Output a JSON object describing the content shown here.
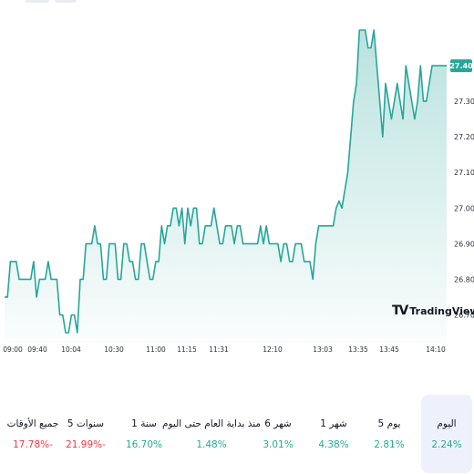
{
  "colors": {
    "positive": "#22ab94",
    "negative": "#f23645",
    "line": "#26a69a",
    "active_bg": "#eef1fb"
  },
  "logo": {
    "mark": "TV",
    "text": "TradingView"
  },
  "chart_data": {
    "type": "line",
    "title": "",
    "xlabel": "",
    "ylabel": "",
    "last_value_label": "27.40",
    "ylim": [
      26.65,
      27.55
    ],
    "y_ticks": [
      26.7,
      26.8,
      26.9,
      27.0,
      27.1,
      27.2,
      27.3
    ],
    "y_tick_labels": [
      "26.70",
      "26.80",
      "26.90",
      "27.00",
      "27.10",
      "27.20",
      "27.30"
    ],
    "x_ticks": [
      "09:00",
      "09:40",
      "10:04",
      "10:30",
      "11:00",
      "11:15",
      "11:31",
      "12:10",
      "13:03",
      "13:35",
      "13:45",
      "14:10"
    ],
    "series": [
      {
        "values": [
          26.75,
          26.75,
          26.85,
          26.85,
          26.85,
          26.8,
          26.8,
          26.8,
          26.8,
          26.8,
          26.85,
          26.75,
          26.8,
          26.8,
          26.8,
          26.85,
          26.8,
          26.8,
          26.8,
          26.7,
          26.7,
          26.65,
          26.65,
          26.7,
          26.7,
          26.65,
          26.8,
          26.8,
          26.9,
          26.9,
          26.9,
          26.95,
          26.9,
          26.9,
          26.8,
          26.8,
          26.9,
          26.9,
          26.9,
          26.8,
          26.8,
          26.9,
          26.9,
          26.85,
          26.85,
          26.8,
          26.8,
          26.9,
          26.9,
          26.85,
          26.8,
          26.8,
          26.85,
          26.85,
          26.95,
          26.9,
          26.95,
          26.95,
          27.0,
          27.0,
          26.95,
          27.0,
          26.9,
          27.0,
          26.95,
          27.0,
          27.0,
          26.9,
          26.9,
          26.95,
          26.95,
          26.95,
          27.0,
          26.95,
          26.9,
          26.9,
          26.95,
          26.95,
          26.95,
          26.9,
          26.95,
          26.95,
          26.9,
          26.9,
          26.9,
          26.9,
          26.9,
          26.9,
          26.95,
          26.9,
          26.95,
          26.9,
          26.9,
          26.9,
          26.9,
          26.85,
          26.9,
          26.9,
          26.85,
          26.85,
          26.9,
          26.9,
          26.9,
          26.85,
          26.85,
          26.85,
          26.8,
          26.9,
          26.95,
          26.95,
          26.95,
          26.95,
          26.95,
          26.95,
          27.0,
          27.02,
          27.0,
          27.05,
          27.1,
          27.2,
          27.3,
          27.35,
          27.5,
          27.5,
          27.5,
          27.45,
          27.45,
          27.5,
          27.4,
          27.3,
          27.2,
          27.35,
          27.3,
          27.25,
          27.3,
          27.35,
          27.3,
          27.25,
          27.4,
          27.35,
          27.3,
          27.25,
          27.3,
          27.4,
          27.3,
          27.3,
          27.35,
          27.4,
          27.4,
          27.4,
          27.4,
          27.4,
          27.4
        ]
      }
    ]
  },
  "periods": [
    {
      "label": "جميع الأوقات",
      "value": "17.78%-",
      "dir": "neg",
      "active": false
    },
    {
      "label": "5 سنوات",
      "value": "21.99%-",
      "dir": "neg",
      "active": false
    },
    {
      "label": "1 سنة",
      "value": "16.70%",
      "dir": "pos",
      "active": false
    },
    {
      "label": "منذ بداية العام حتى اليوم",
      "value": "1.48%",
      "dir": "pos",
      "active": false
    },
    {
      "label": "6 شهر",
      "value": "3.01%",
      "dir": "pos",
      "active": false
    },
    {
      "label": "1 شهر",
      "value": "4.38%",
      "dir": "pos",
      "active": false
    },
    {
      "label": "5 يوم",
      "value": "2.81%",
      "dir": "pos",
      "active": false
    },
    {
      "label": "اليوم",
      "value": "2.24%",
      "dir": "pos",
      "active": true
    }
  ]
}
